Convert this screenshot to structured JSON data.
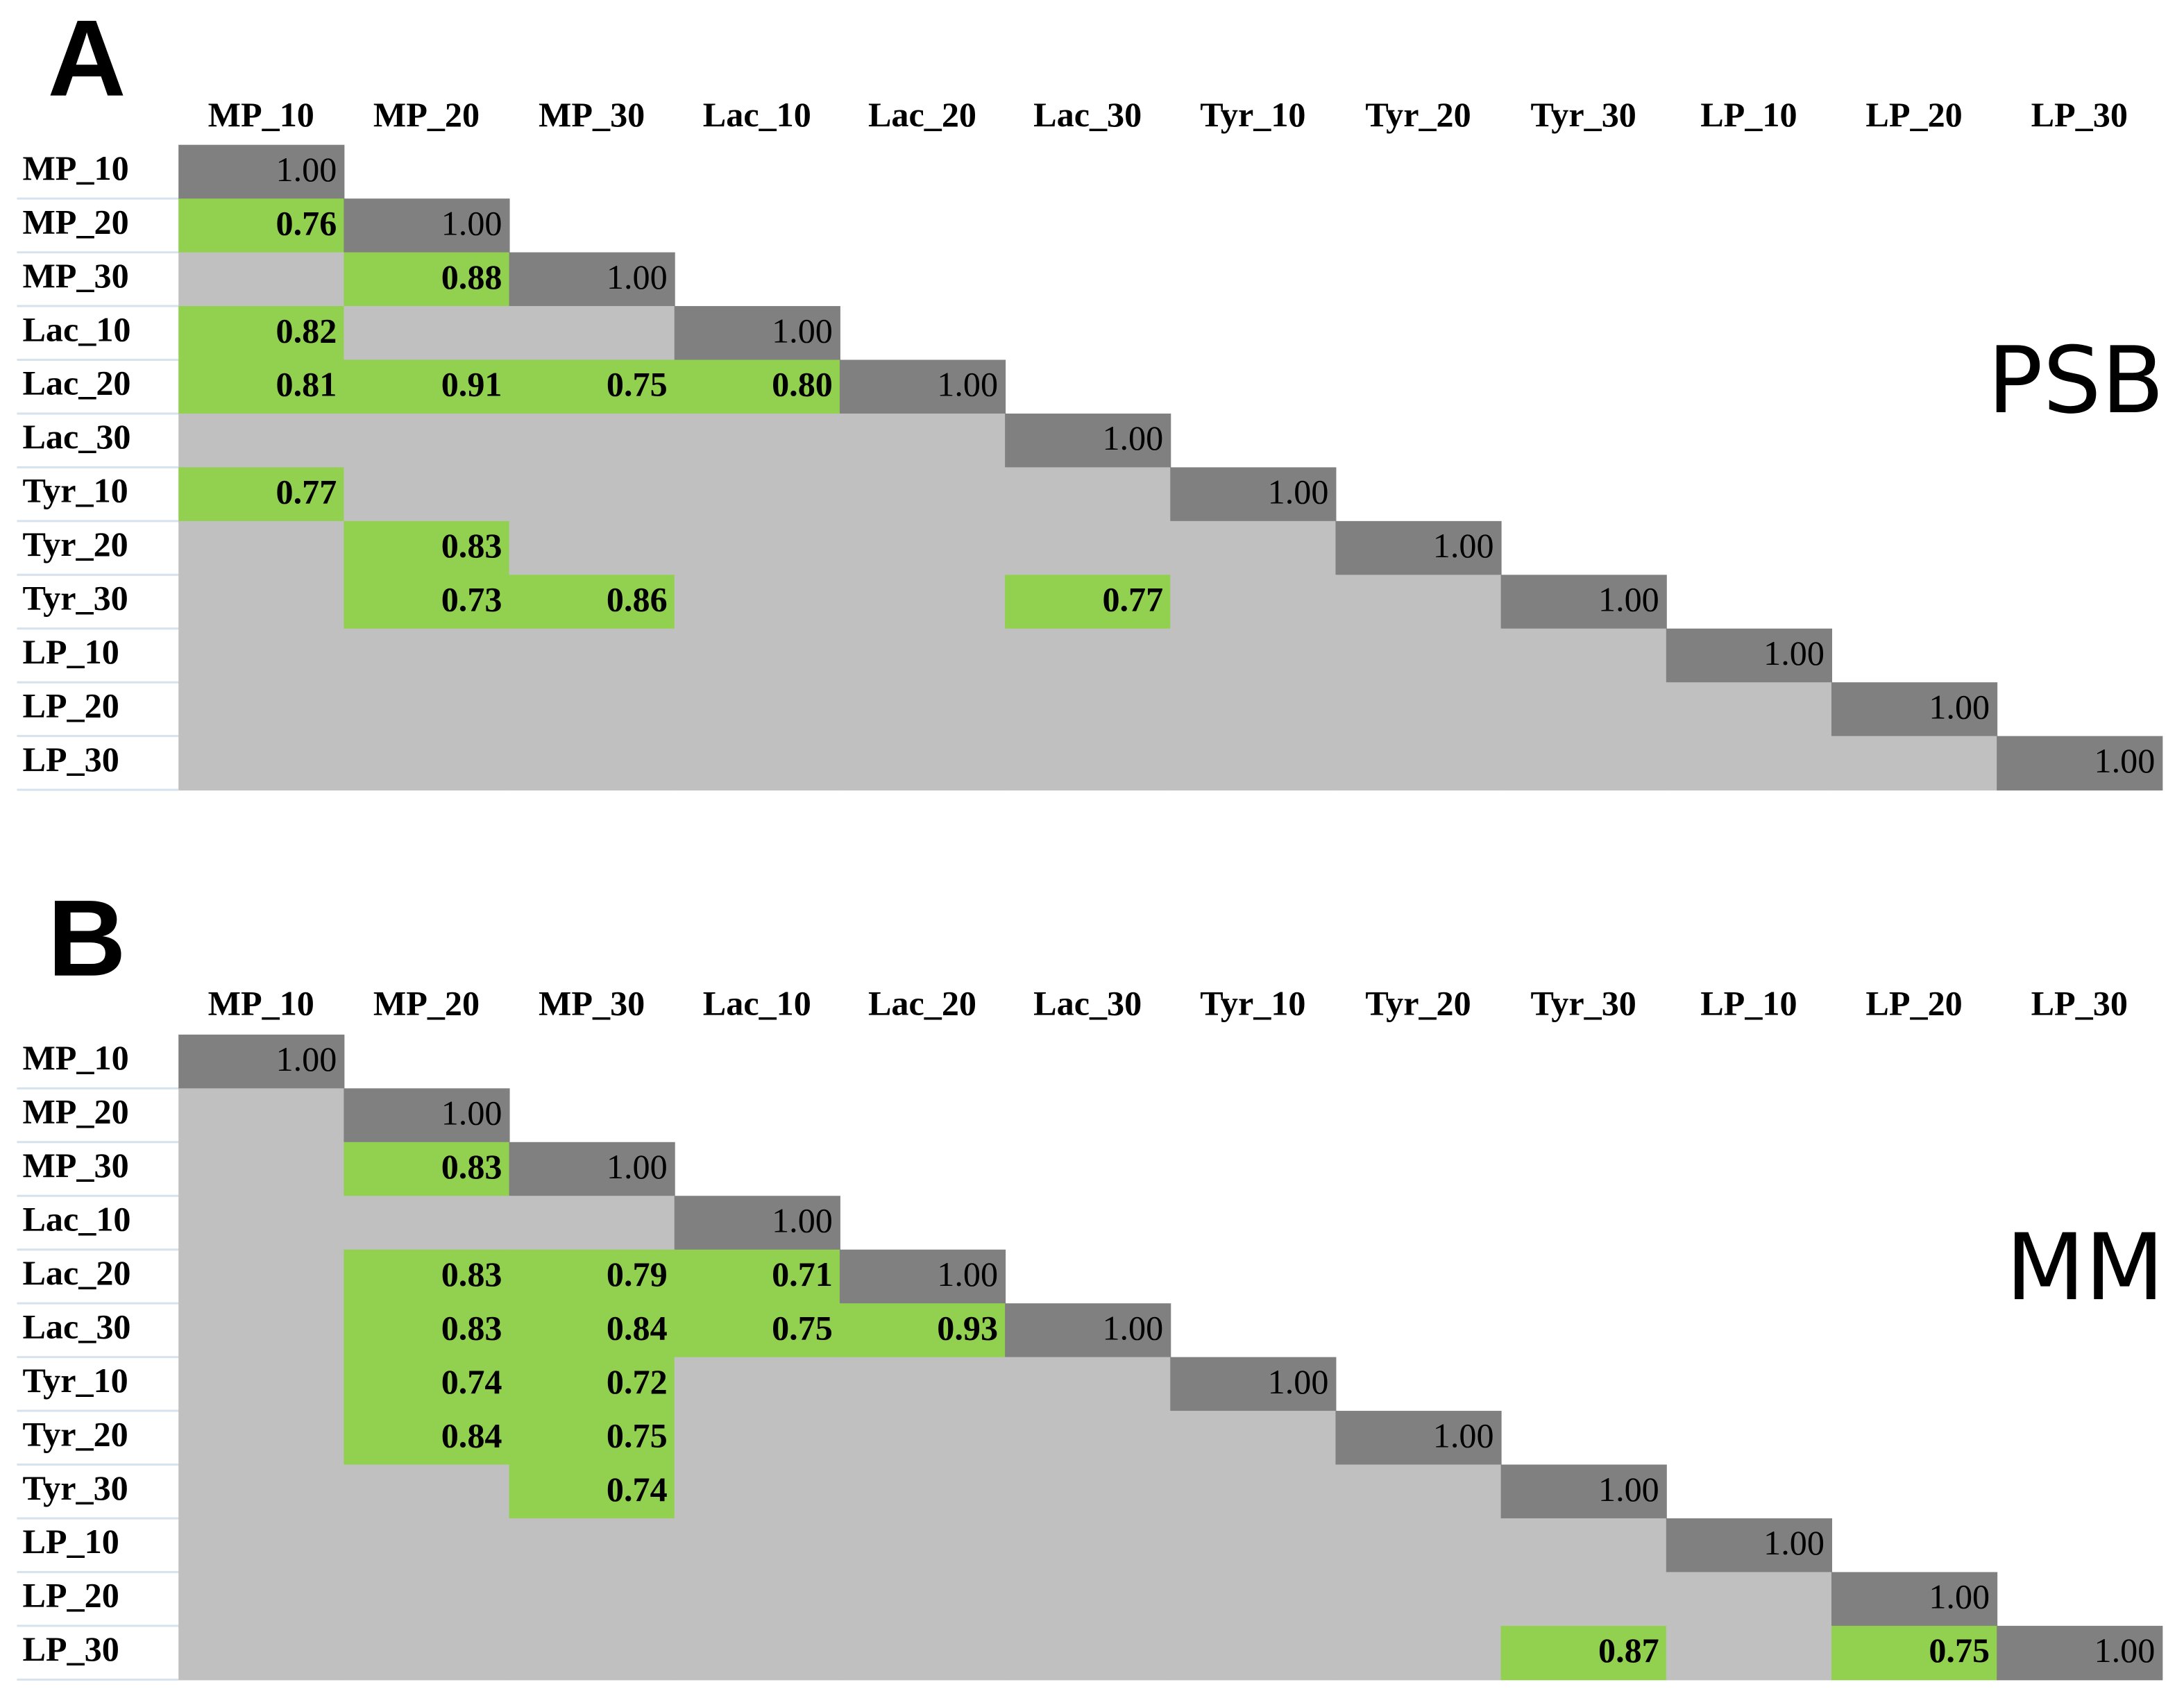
{
  "panels": [
    {
      "letter": "A",
      "side_label": "PSB",
      "columns": [
        "MP_10",
        "MP_20",
        "MP_30",
        "Lac_10",
        "Lac_20",
        "Lac_30",
        "Tyr_10",
        "Tyr_20",
        "Tyr_30",
        "LP_10",
        "LP_20",
        "LP_30"
      ],
      "rows": [
        {
          "label": "MP_10",
          "cells": [
            "1.00"
          ]
        },
        {
          "label": "MP_20",
          "cells": [
            "0.76",
            "1.00"
          ]
        },
        {
          "label": "MP_30",
          "cells": [
            null,
            "0.88",
            "1.00"
          ]
        },
        {
          "label": "Lac_10",
          "cells": [
            "0.82",
            null,
            null,
            "1.00"
          ]
        },
        {
          "label": "Lac_20",
          "cells": [
            "0.81",
            "0.91",
            "0.75",
            "0.80",
            "1.00"
          ]
        },
        {
          "label": "Lac_30",
          "cells": [
            null,
            null,
            null,
            null,
            null,
            "1.00"
          ]
        },
        {
          "label": "Tyr_10",
          "cells": [
            "0.77",
            null,
            null,
            null,
            null,
            null,
            "1.00"
          ]
        },
        {
          "label": "Tyr_20",
          "cells": [
            null,
            "0.83",
            null,
            null,
            null,
            null,
            null,
            "1.00"
          ]
        },
        {
          "label": "Tyr_30",
          "cells": [
            null,
            "0.73",
            "0.86",
            null,
            null,
            "0.77",
            null,
            null,
            "1.00"
          ]
        },
        {
          "label": "LP_10",
          "cells": [
            null,
            null,
            null,
            null,
            null,
            null,
            null,
            null,
            null,
            "1.00"
          ]
        },
        {
          "label": "LP_20",
          "cells": [
            null,
            null,
            null,
            null,
            null,
            null,
            null,
            null,
            null,
            null,
            "1.00"
          ]
        },
        {
          "label": "LP_30",
          "cells": [
            null,
            null,
            null,
            null,
            null,
            null,
            null,
            null,
            null,
            null,
            null,
            "1.00"
          ]
        }
      ]
    },
    {
      "letter": "B",
      "side_label": "MM",
      "columns": [
        "MP_10",
        "MP_20",
        "MP_30",
        "Lac_10",
        "Lac_20",
        "Lac_30",
        "Tyr_10",
        "Tyr_20",
        "Tyr_30",
        "LP_10",
        "LP_20",
        "LP_30"
      ],
      "rows": [
        {
          "label": "MP_10",
          "cells": [
            "1.00"
          ]
        },
        {
          "label": "MP_20",
          "cells": [
            null,
            "1.00"
          ]
        },
        {
          "label": "MP_30",
          "cells": [
            null,
            "0.83",
            "1.00"
          ]
        },
        {
          "label": "Lac_10",
          "cells": [
            null,
            null,
            null,
            "1.00"
          ]
        },
        {
          "label": "Lac_20",
          "cells": [
            null,
            "0.83",
            "0.79",
            "0.71",
            "1.00"
          ]
        },
        {
          "label": "Lac_30",
          "cells": [
            null,
            "0.83",
            "0.84",
            "0.75",
            "0.93",
            "1.00"
          ]
        },
        {
          "label": "Tyr_10",
          "cells": [
            null,
            "0.74",
            "0.72",
            null,
            null,
            null,
            "1.00"
          ]
        },
        {
          "label": "Tyr_20",
          "cells": [
            null,
            "0.84",
            "0.75",
            null,
            null,
            null,
            null,
            "1.00"
          ]
        },
        {
          "label": "Tyr_30",
          "cells": [
            null,
            null,
            "0.74",
            null,
            null,
            null,
            null,
            null,
            "1.00"
          ]
        },
        {
          "label": "LP_10",
          "cells": [
            null,
            null,
            null,
            null,
            null,
            null,
            null,
            null,
            null,
            "1.00"
          ]
        },
        {
          "label": "LP_20",
          "cells": [
            null,
            null,
            null,
            null,
            null,
            null,
            null,
            null,
            null,
            null,
            "1.00"
          ]
        },
        {
          "label": "LP_30",
          "cells": [
            null,
            null,
            null,
            null,
            null,
            null,
            null,
            null,
            "0.87",
            null,
            "0.75",
            "1.00"
          ]
        }
      ]
    }
  ]
}
